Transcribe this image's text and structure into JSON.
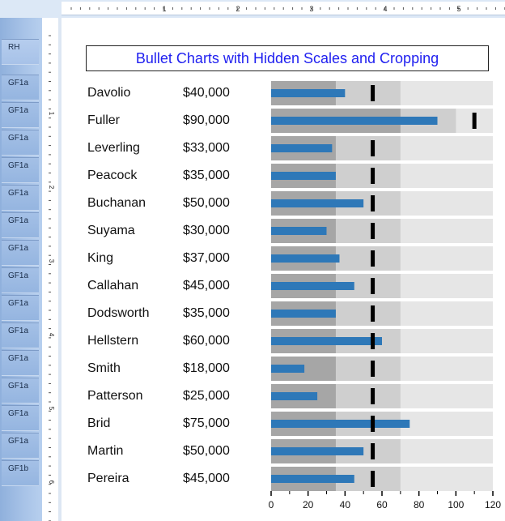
{
  "bands": [
    {
      "label": "RH"
    },
    {
      "label": "GF1a"
    },
    {
      "label": "GF1a"
    },
    {
      "label": "GF1a"
    },
    {
      "label": "GF1a"
    },
    {
      "label": "GF1a"
    },
    {
      "label": "GF1a"
    },
    {
      "label": "GF1a"
    },
    {
      "label": "GF1a"
    },
    {
      "label": "GF1a"
    },
    {
      "label": "GF1a"
    },
    {
      "label": "GF1a"
    },
    {
      "label": "GF1a"
    },
    {
      "label": "GF1a"
    },
    {
      "label": "GF1a"
    },
    {
      "label": "GF1b"
    }
  ],
  "ruler_top_numbers": [
    "1",
    "2",
    "3",
    "4",
    "5"
  ],
  "ruler_left_numbers": [
    "1",
    "2",
    "3",
    "4",
    "5",
    "6"
  ],
  "report": {
    "title": "Bullet Charts with Hidden Scales and Cropping",
    "title_color": "#1f1ff0"
  },
  "chart_data": {
    "type": "bar",
    "title": "Bullet Charts with Hidden Scales and Cropping",
    "xlim": [
      0,
      120
    ],
    "x_ticks": [
      0,
      20,
      40,
      60,
      80,
      100,
      120
    ],
    "colors": {
      "band_dark": "#a6a6a6",
      "band_mid": "#cfcfcf",
      "band_light": "#e6e6e6",
      "bar": "#2e78b8",
      "target": "#000000"
    },
    "rows": [
      {
        "name": "Davolio",
        "amount": "$40,000",
        "value": 40,
        "target": 55,
        "ranges": [
          35,
          70,
          120
        ]
      },
      {
        "name": "Fuller",
        "amount": "$90,000",
        "value": 90,
        "target": 110,
        "ranges": [
          70,
          100,
          120
        ]
      },
      {
        "name": "Leverling",
        "amount": "$33,000",
        "value": 33,
        "target": 55,
        "ranges": [
          35,
          70,
          120
        ]
      },
      {
        "name": "Peacock",
        "amount": "$35,000",
        "value": 35,
        "target": 55,
        "ranges": [
          35,
          70,
          120
        ]
      },
      {
        "name": "Buchanan",
        "amount": "$50,000",
        "value": 50,
        "target": 55,
        "ranges": [
          35,
          70,
          120
        ]
      },
      {
        "name": "Suyama",
        "amount": "$30,000",
        "value": 30,
        "target": 55,
        "ranges": [
          35,
          70,
          120
        ]
      },
      {
        "name": "King",
        "amount": "$37,000",
        "value": 37,
        "target": 55,
        "ranges": [
          35,
          70,
          120
        ]
      },
      {
        "name": "Callahan",
        "amount": "$45,000",
        "value": 45,
        "target": 55,
        "ranges": [
          35,
          70,
          120
        ]
      },
      {
        "name": "Dodsworth",
        "amount": "$35,000",
        "value": 35,
        "target": 55,
        "ranges": [
          35,
          70,
          120
        ]
      },
      {
        "name": "Hellstern",
        "amount": "$60,000",
        "value": 60,
        "target": 55,
        "ranges": [
          35,
          70,
          120
        ]
      },
      {
        "name": "Smith",
        "amount": "$18,000",
        "value": 18,
        "target": 55,
        "ranges": [
          35,
          70,
          120
        ]
      },
      {
        "name": "Patterson",
        "amount": "$25,000",
        "value": 25,
        "target": 55,
        "ranges": [
          35,
          70,
          120
        ]
      },
      {
        "name": "Brid",
        "amount": "$75,000",
        "value": 75,
        "target": 55,
        "ranges": [
          35,
          70,
          120
        ]
      },
      {
        "name": "Martin",
        "amount": "$50,000",
        "value": 50,
        "target": 55,
        "ranges": [
          35,
          70,
          120
        ]
      },
      {
        "name": "Pereira",
        "amount": "$45,000",
        "value": 45,
        "target": 55,
        "ranges": [
          35,
          70,
          120
        ]
      }
    ]
  }
}
